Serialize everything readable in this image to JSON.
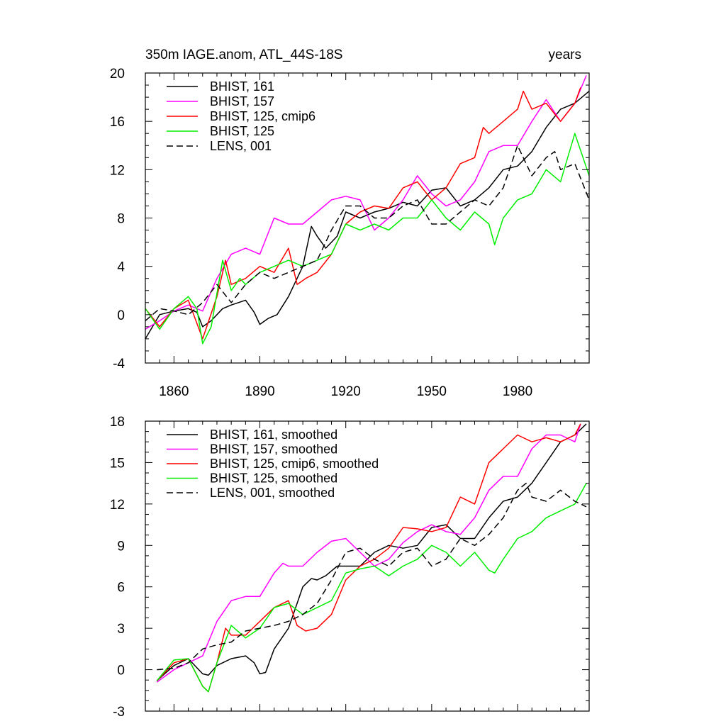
{
  "chart_data": [
    {
      "type": "line",
      "title": "350m IAGE.anom, ATL_44S-18S",
      "right_title": "years",
      "xlabel": "",
      "ylabel": "",
      "xlim": [
        1850,
        2005
      ],
      "ylim": [
        -4,
        20
      ],
      "yticks": [
        -4,
        0,
        4,
        8,
        12,
        16,
        20
      ],
      "ytick_labels": [
        "-4",
        "0",
        "4",
        "8",
        "12",
        "16",
        "20"
      ],
      "xticks": [
        1860,
        1890,
        1920,
        1950,
        1980
      ],
      "xtick_labels": [
        "1860",
        "1890",
        "1920",
        "1950",
        "1980"
      ],
      "legend_position": "top-left",
      "series": [
        {
          "name": "BHIST, 161",
          "color": "#000000",
          "dash": "solid",
          "x": [
            1850,
            1855,
            1860,
            1865,
            1868,
            1870,
            1873,
            1877,
            1880,
            1885,
            1888,
            1890,
            1893,
            1896,
            1900,
            1905,
            1908,
            1910,
            1913,
            1917,
            1920,
            1925,
            1930,
            1935,
            1940,
            1945,
            1950,
            1955,
            1960,
            1965,
            1970,
            1975,
            1980,
            1985,
            1990,
            1995,
            2000,
            2005
          ],
          "values": [
            -2.0,
            0.0,
            0.3,
            0.5,
            0.2,
            -1.0,
            -0.5,
            0.5,
            0.8,
            1.2,
            0.2,
            -0.8,
            -0.3,
            0.0,
            1.5,
            4.0,
            7.3,
            6.5,
            5.5,
            6.5,
            8.5,
            8.0,
            8.5,
            8.8,
            9.3,
            9.0,
            10.3,
            10.5,
            9.0,
            9.5,
            10.5,
            12.0,
            12.3,
            13.5,
            15.5,
            17.0,
            17.5,
            18.5
          ]
        },
        {
          "name": "BHIST, 157",
          "color": "#ff00ff",
          "dash": "solid",
          "x": [
            1850,
            1855,
            1860,
            1865,
            1870,
            1875,
            1880,
            1885,
            1890,
            1895,
            1900,
            1905,
            1910,
            1915,
            1920,
            1925,
            1930,
            1935,
            1940,
            1945,
            1950,
            1955,
            1960,
            1965,
            1970,
            1975,
            1980,
            1985,
            1990,
            1995,
            2000,
            2004
          ],
          "values": [
            -1.2,
            -0.5,
            0.3,
            0.8,
            0.3,
            3.0,
            5.0,
            5.5,
            5.0,
            8.0,
            7.5,
            7.5,
            8.5,
            9.5,
            9.8,
            9.5,
            7.0,
            8.0,
            9.5,
            11.5,
            10.0,
            9.0,
            9.5,
            11.0,
            13.5,
            14.0,
            14.0,
            16.0,
            17.8,
            16.0,
            17.5,
            19.8
          ]
        },
        {
          "name": "BHIST, 125, cmip6",
          "color": "#ff0000",
          "dash": "solid",
          "x": [
            1850,
            1855,
            1860,
            1865,
            1870,
            1875,
            1878,
            1880,
            1885,
            1890,
            1895,
            1900,
            1903,
            1906,
            1910,
            1915,
            1920,
            1925,
            1930,
            1935,
            1940,
            1945,
            1950,
            1955,
            1960,
            1965,
            1968,
            1970,
            1975,
            1980,
            1982,
            1985,
            1990,
            1995,
            2000,
            2002
          ],
          "values": [
            0.5,
            -1.0,
            0.5,
            1.2,
            -2.0,
            1.5,
            4.5,
            2.5,
            3.0,
            4.0,
            3.5,
            5.5,
            2.5,
            3.0,
            3.5,
            5.0,
            7.5,
            8.5,
            9.0,
            8.8,
            10.5,
            11.0,
            9.5,
            10.5,
            12.5,
            13.0,
            15.5,
            15.0,
            16.0,
            17.0,
            18.5,
            17.0,
            17.5,
            16.0,
            17.5,
            18.8
          ]
        },
        {
          "name": "BHIST, 125",
          "color": "#00ee00",
          "dash": "solid",
          "x": [
            1850,
            1855,
            1860,
            1865,
            1868,
            1870,
            1873,
            1877,
            1880,
            1883,
            1885,
            1890,
            1895,
            1900,
            1905,
            1910,
            1915,
            1920,
            1925,
            1930,
            1935,
            1940,
            1945,
            1950,
            1955,
            1960,
            1965,
            1970,
            1972,
            1975,
            1980,
            1985,
            1990,
            1995,
            2000,
            2005
          ],
          "values": [
            0.5,
            -1.2,
            0.5,
            1.5,
            0.5,
            -2.4,
            -1.0,
            4.5,
            2.0,
            3.0,
            2.5,
            3.5,
            4.0,
            4.5,
            4.0,
            4.5,
            5.0,
            7.5,
            7.0,
            7.5,
            7.0,
            8.0,
            8.0,
            9.5,
            8.0,
            7.0,
            8.5,
            7.5,
            5.8,
            8.0,
            9.5,
            10.0,
            12.0,
            11.0,
            15.0,
            11.5
          ]
        },
        {
          "name": "LENS, 001",
          "color": "#000000",
          "dash": "dashed",
          "x": [
            1850,
            1855,
            1860,
            1865,
            1870,
            1875,
            1880,
            1885,
            1890,
            1895,
            1900,
            1905,
            1910,
            1915,
            1920,
            1925,
            1930,
            1935,
            1940,
            1945,
            1950,
            1955,
            1960,
            1965,
            1970,
            1975,
            1980,
            1985,
            1990,
            1993,
            1995,
            2000,
            2005
          ],
          "values": [
            -0.5,
            0.5,
            0.3,
            0.0,
            1.0,
            2.5,
            1.0,
            2.5,
            3.5,
            3.0,
            3.5,
            4.0,
            4.5,
            7.0,
            9.0,
            9.0,
            8.0,
            8.0,
            9.0,
            9.5,
            7.5,
            7.5,
            8.5,
            9.5,
            9.0,
            10.5,
            14.0,
            11.5,
            13.0,
            13.5,
            12.0,
            12.5,
            9.5
          ]
        }
      ]
    },
    {
      "type": "line",
      "title": "",
      "xlabel": "",
      "ylabel": "",
      "xlim": [
        1850,
        2005
      ],
      "ylim": [
        -3,
        18
      ],
      "yticks": [
        -3,
        0,
        3,
        6,
        9,
        12,
        15,
        18
      ],
      "ytick_labels": [
        "-3",
        "0",
        "3",
        "6",
        "9",
        "12",
        "15",
        "18"
      ],
      "xticks": [
        1860,
        1890,
        1920,
        1950,
        1980
      ],
      "xtick_labels": [],
      "legend_position": "top-left",
      "series": [
        {
          "name": "BHIST, 161, smoothed",
          "color": "#000000",
          "dash": "solid",
          "x": [
            1854,
            1860,
            1865,
            1870,
            1872,
            1875,
            1880,
            1885,
            1888,
            1890,
            1892,
            1895,
            1900,
            1905,
            1908,
            1910,
            1913,
            1917,
            1920,
            1925,
            1930,
            1935,
            1940,
            1945,
            1950,
            1955,
            1960,
            1965,
            1970,
            1975,
            1980,
            1985,
            1990,
            1995,
            2000,
            2004
          ],
          "values": [
            -0.8,
            0.3,
            0.8,
            -0.3,
            -0.4,
            0.3,
            0.8,
            1.0,
            0.5,
            -0.3,
            -0.2,
            1.5,
            3.0,
            6.0,
            6.6,
            6.5,
            6.8,
            7.5,
            7.5,
            7.5,
            8.5,
            9.0,
            8.8,
            9.0,
            10.3,
            10.5,
            9.5,
            9.5,
            11.0,
            12.2,
            12.5,
            13.5,
            15.0,
            16.5,
            17.0,
            17.8
          ]
        },
        {
          "name": "BHIST, 157, smoothed",
          "color": "#ff00ff",
          "dash": "solid",
          "x": [
            1854,
            1860,
            1865,
            1870,
            1875,
            1880,
            1885,
            1890,
            1895,
            1898,
            1900,
            1905,
            1910,
            1915,
            1920,
            1925,
            1930,
            1935,
            1940,
            1945,
            1950,
            1955,
            1960,
            1965,
            1970,
            1975,
            1980,
            1985,
            1990,
            1995,
            2000,
            2002
          ],
          "values": [
            -0.9,
            0.0,
            0.5,
            1.0,
            3.5,
            5.0,
            5.3,
            5.3,
            7.0,
            7.7,
            7.5,
            7.5,
            8.5,
            9.3,
            9.5,
            8.5,
            7.5,
            8.0,
            9.2,
            10.0,
            10.5,
            10.0,
            9.8,
            11.0,
            13.0,
            14.0,
            14.0,
            16.0,
            17.0,
            17.0,
            16.5,
            17.8
          ]
        },
        {
          "name": "BHIST, 125, cmip6, smoothed",
          "color": "#ff0000",
          "dash": "solid",
          "x": [
            1854,
            1860,
            1865,
            1870,
            1872,
            1875,
            1878,
            1880,
            1885,
            1890,
            1895,
            1900,
            1903,
            1906,
            1910,
            1915,
            1920,
            1925,
            1930,
            1935,
            1940,
            1945,
            1950,
            1955,
            1960,
            1965,
            1970,
            1975,
            1980,
            1985,
            1990,
            1995,
            2000,
            2002
          ],
          "values": [
            -0.8,
            0.5,
            0.8,
            -1.2,
            -1.6,
            0.5,
            3.0,
            2.5,
            2.5,
            3.5,
            4.5,
            5.0,
            3.2,
            2.8,
            3.0,
            4.0,
            6.5,
            7.5,
            8.0,
            8.8,
            10.3,
            10.2,
            10.0,
            10.3,
            12.5,
            12.0,
            15.0,
            16.0,
            17.0,
            16.5,
            16.8,
            16.5,
            17.0,
            17.8
          ]
        },
        {
          "name": "BHIST, 125, smoothed",
          "color": "#00ee00",
          "dash": "solid",
          "x": [
            1854,
            1860,
            1865,
            1870,
            1872,
            1875,
            1880,
            1885,
            1890,
            1895,
            1900,
            1905,
            1910,
            1915,
            1920,
            1925,
            1930,
            1935,
            1940,
            1945,
            1950,
            1955,
            1960,
            1965,
            1970,
            1972,
            1975,
            1980,
            1985,
            1990,
            1995,
            2000,
            2004
          ],
          "values": [
            -0.8,
            0.7,
            0.8,
            -1.2,
            -1.6,
            0.5,
            3.2,
            2.3,
            3.0,
            4.5,
            4.8,
            4.0,
            4.5,
            5.0,
            7.0,
            7.3,
            7.5,
            6.8,
            7.5,
            8.0,
            9.0,
            8.5,
            7.5,
            8.5,
            7.2,
            7.0,
            8.0,
            9.5,
            10.0,
            11.0,
            11.5,
            12.0,
            13.5
          ]
        },
        {
          "name": "LENS, 001, smoothed",
          "color": "#000000",
          "dash": "dashed",
          "x": [
            1854,
            1860,
            1865,
            1870,
            1875,
            1880,
            1885,
            1890,
            1895,
            1900,
            1905,
            1910,
            1915,
            1920,
            1925,
            1930,
            1935,
            1940,
            1945,
            1950,
            1955,
            1960,
            1965,
            1970,
            1975,
            1980,
            1983,
            1985,
            1990,
            1995,
            2000,
            2004
          ],
          "values": [
            0.0,
            0.1,
            0.5,
            1.5,
            1.8,
            2.0,
            2.8,
            3.0,
            3.2,
            3.5,
            4.0,
            4.8,
            6.5,
            8.5,
            8.8,
            8.0,
            7.5,
            8.5,
            8.8,
            7.5,
            8.0,
            9.5,
            9.0,
            9.8,
            11.0,
            13.0,
            13.5,
            12.5,
            12.2,
            13.0,
            12.2,
            11.8
          ]
        }
      ]
    }
  ]
}
